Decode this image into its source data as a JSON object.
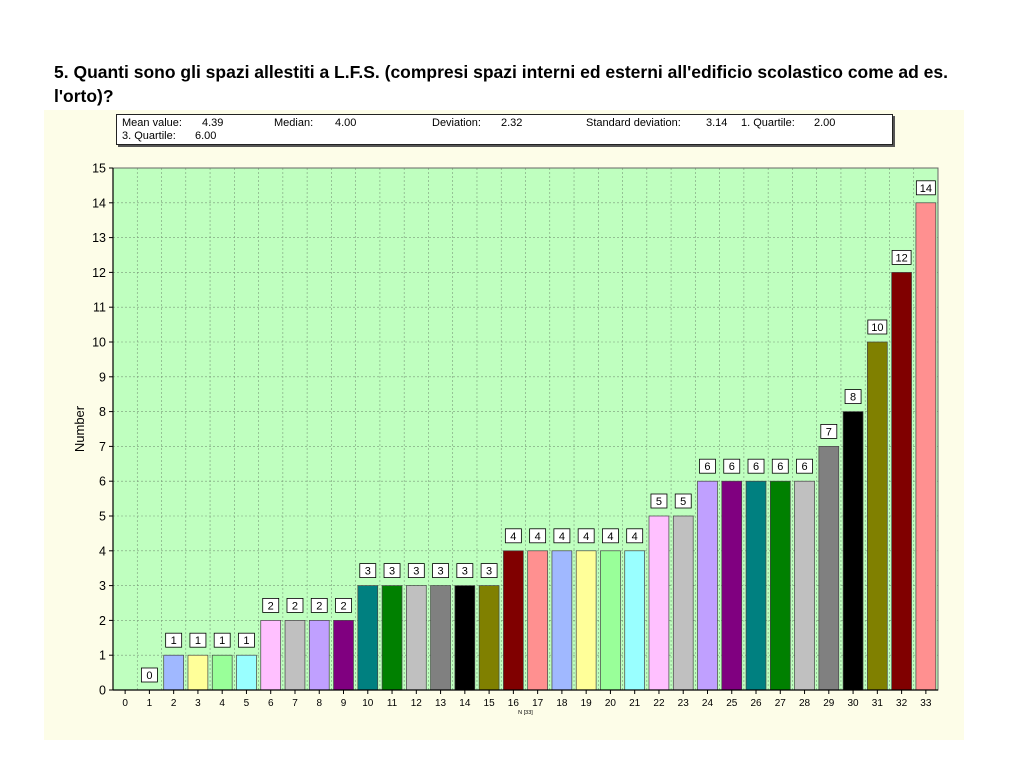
{
  "question": "5. Quanti sono gli spazi allestiti a L.F.S. (compresi spazi interni ed esterni all'edificio scolastico come ad es. l'orto)?",
  "stats": {
    "mean_label": "Mean value:",
    "mean": "4.39",
    "median_label": "Median:",
    "median": "4.00",
    "deviation_label": "Deviation:",
    "deviation": "2.32",
    "std_label": "Standard deviation:",
    "std": "3.14",
    "q1_label": "1. Quartile:",
    "q1": "2.00",
    "q3_label": "3. Quartile:",
    "q3": "6.00"
  },
  "chart_data": {
    "type": "bar",
    "ylabel": "Number",
    "x_note": "N [33]",
    "ylim": [
      0,
      15
    ],
    "grid": true,
    "plot_background": "#bfffbf",
    "categories": [
      "0",
      "1",
      "2",
      "3",
      "4",
      "5",
      "6",
      "7",
      "8",
      "9",
      "10",
      "11",
      "12",
      "13",
      "14",
      "15",
      "16",
      "17",
      "18",
      "19",
      "20",
      "21",
      "22",
      "23",
      "24",
      "25",
      "26",
      "27",
      "28",
      "29",
      "30",
      "31",
      "32",
      "33"
    ],
    "values": [
      null,
      0,
      1,
      1,
      1,
      1,
      2,
      2,
      2,
      2,
      3,
      3,
      3,
      3,
      3,
      3,
      4,
      4,
      4,
      4,
      4,
      4,
      5,
      5,
      6,
      6,
      6,
      6,
      6,
      7,
      8,
      10,
      12,
      14
    ],
    "colors": [
      "#000000",
      "#000000",
      "#a0b8ff",
      "#ffff99",
      "#99ff99",
      "#99ffff",
      "#ffc0ff",
      "#c0c0c0",
      "#c0a0ff",
      "#800080",
      "#008080",
      "#008000",
      "#c0c0c0",
      "#808080",
      "#000000",
      "#808000",
      "#800000",
      "#ff9090",
      "#a0b8ff",
      "#ffff99",
      "#99ff99",
      "#99ffff",
      "#ffc0ff",
      "#c0c0c0",
      "#c0a0ff",
      "#800080",
      "#008080",
      "#008000",
      "#c0c0c0",
      "#808080",
      "#000000",
      "#808000",
      "#800000",
      "#ff9090"
    ]
  }
}
